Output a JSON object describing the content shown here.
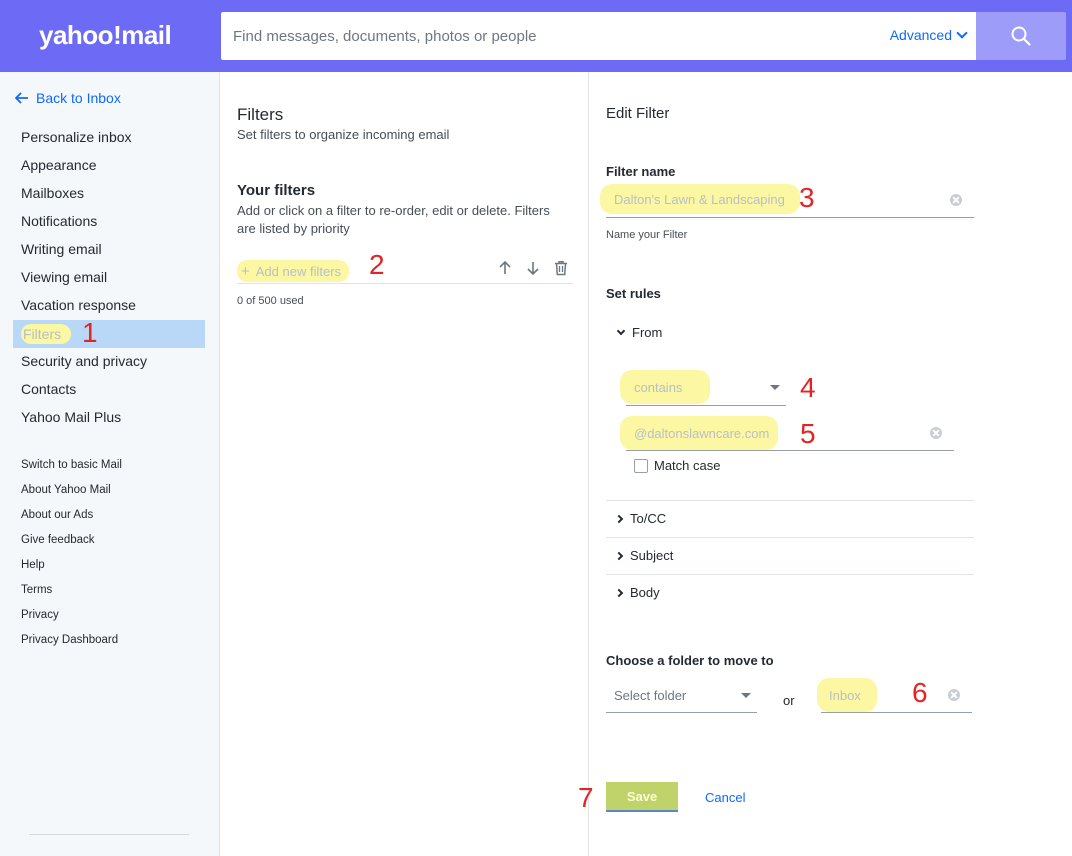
{
  "header": {
    "logo": "yahoo!mail",
    "search_placeholder": "Find messages, documents, photos or people",
    "advanced_label": "Advanced"
  },
  "sidebar": {
    "back_label": "Back to Inbox",
    "items": [
      {
        "label": "Personalize inbox"
      },
      {
        "label": "Appearance"
      },
      {
        "label": "Mailboxes"
      },
      {
        "label": "Notifications"
      },
      {
        "label": "Writing email"
      },
      {
        "label": "Viewing email"
      },
      {
        "label": "Vacation response"
      },
      {
        "label": "Filters"
      },
      {
        "label": "Security and privacy"
      },
      {
        "label": "Contacts"
      },
      {
        "label": "Yahoo Mail Plus"
      }
    ],
    "links": [
      {
        "label": "Switch to basic Mail"
      },
      {
        "label": "About Yahoo Mail"
      },
      {
        "label": "About our Ads"
      },
      {
        "label": "Give feedback"
      },
      {
        "label": "Help"
      },
      {
        "label": "Terms"
      },
      {
        "label": "Privacy"
      },
      {
        "label": "Privacy Dashboard"
      }
    ]
  },
  "filters_panel": {
    "title": "Filters",
    "subtitle": "Set filters to organize incoming email",
    "your_filters": "Your filters",
    "description": "Add or click on a filter to re-order, edit or delete. Filters are listed by priority",
    "add_label": "Add new filters",
    "used": "0 of 500 used"
  },
  "edit_filter": {
    "title": "Edit Filter",
    "name_label": "Filter name",
    "name_value": "Dalton's Lawn & Landscaping",
    "name_helper": "Name your Filter",
    "rules_label": "Set rules",
    "from_label": "From",
    "condition": "contains",
    "match_value": "@daltonslawncare.com",
    "match_case": "Match case",
    "rules": [
      {
        "label": "To/CC"
      },
      {
        "label": "Subject"
      },
      {
        "label": "Body"
      }
    ],
    "folder_label": "Choose a folder to move to",
    "select_folder": "Select folder",
    "or": "or",
    "folder_value": "Inbox",
    "save": "Save",
    "cancel": "Cancel"
  },
  "annotations": [
    "1",
    "2",
    "3",
    "4",
    "5",
    "6",
    "7"
  ]
}
